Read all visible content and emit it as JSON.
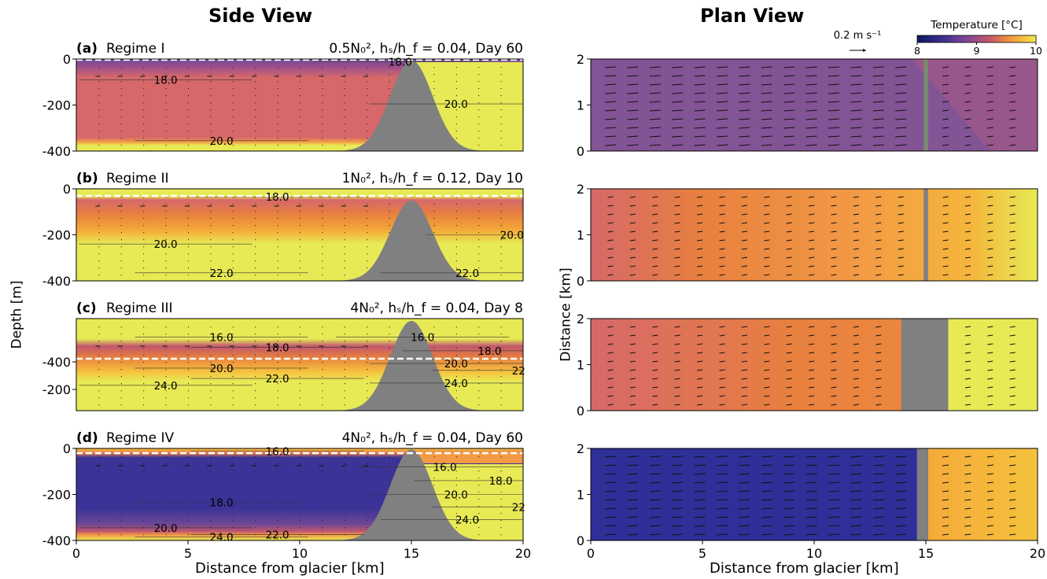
{
  "titles": {
    "side": "Side View",
    "plan": "Plan View",
    "ylabel_side": "Depth [m]",
    "ylabel_plan": "Distance [km]",
    "xlabel_side": "Distance from glacier [km]",
    "xlabel_plan": "Distance from glacier [km]"
  },
  "colorbar": {
    "label": "Temperature [°C]",
    "ticks": [
      "8",
      "9",
      "10"
    ],
    "colors": [
      "#0d1a5e",
      "#3a2c8c",
      "#7a4598",
      "#b85578",
      "#e87b4a",
      "#f7b13c",
      "#f2ea55"
    ]
  },
  "scale_arrow": {
    "label": "0.2 m s⁻¹"
  },
  "colors": {
    "topography": "#808080",
    "yellow": "#e8ea55",
    "regime1_side": "#d6686a",
    "regime1_plan": "#835495",
    "regime2_plan": "#f0913c",
    "regime3_plan": "#e8803f",
    "regime4_side": "#3b3397",
    "regime4_plan": "#2f2f99",
    "regime4_plan_right": "#f5aa38"
  },
  "chart_data": [
    {
      "type": "heatmap",
      "panel": "(a)",
      "view": "side",
      "label": "(a)",
      "regime": "Regime I",
      "params": "0.5N₀², hₛ/h_f = 0.04, Day 60",
      "xlim": [
        0,
        20
      ],
      "ylim": [
        -400,
        0
      ],
      "yticks": [
        "0",
        "-200",
        "-400"
      ],
      "xticks": [],
      "contour_labels": [
        {
          "text": "18.0",
          "x": 14.5,
          "y": -12
        },
        {
          "text": "18.0",
          "x": 4,
          "y": -90
        },
        {
          "text": "20.0",
          "x": 17,
          "y": -195
        },
        {
          "text": "20.0",
          "x": 6.5,
          "y": -355
        }
      ],
      "sill_center_km": 15,
      "sill_top_depth": -5
    },
    {
      "type": "heatmap",
      "panel": "(b)",
      "view": "side",
      "label": "(b)",
      "regime": "Regime II",
      "params": "1N₀², hₛ/h_f = 0.12, Day 10",
      "xlim": [
        0,
        20
      ],
      "ylim": [
        -400,
        0
      ],
      "yticks": [
        "0",
        "-200",
        "-400"
      ],
      "xticks": [],
      "contour_labels": [
        {
          "text": "18.0",
          "x": 9,
          "y": -35
        },
        {
          "text": "20.0",
          "x": 4,
          "y": -240
        },
        {
          "text": "20.0",
          "x": 19.5,
          "y": -200
        },
        {
          "text": "22.0",
          "x": 6.5,
          "y": -365
        },
        {
          "text": "22.0",
          "x": 17.5,
          "y": -365
        }
      ],
      "sill_center_km": 15,
      "sill_top_depth": -50
    },
    {
      "type": "heatmap",
      "panel": "(c)",
      "view": "side",
      "label": "(c)",
      "regime": "Regime III",
      "params": "4N₀², hₛ/h_f = 0.04, Day 8",
      "xlim": [
        0,
        20
      ],
      "ylim": [
        -600,
        -200
      ],
      "yticks": [
        "-400",
        "-200"
      ],
      "xticks": [],
      "contour_labels": [
        {
          "text": "16.0",
          "x": 6.5,
          "y": -280
        },
        {
          "text": "16.0",
          "x": 15.5,
          "y": -280
        },
        {
          "text": "18.0",
          "x": 9,
          "y": -325
        },
        {
          "text": "18.0",
          "x": 18.5,
          "y": -340
        },
        {
          "text": "20.0",
          "x": 6.5,
          "y": -415
        },
        {
          "text": "20.0",
          "x": 17,
          "y": -395
        },
        {
          "text": "22.0",
          "x": 9,
          "y": -460
        },
        {
          "text": "22",
          "x": 19.8,
          "y": -425
        },
        {
          "text": "24.0",
          "x": 4,
          "y": -490
        },
        {
          "text": "24.0",
          "x": 17,
          "y": -480
        }
      ],
      "sill_center_km": 15,
      "sill_top_depth": -210
    },
    {
      "type": "heatmap",
      "panel": "(d)",
      "view": "side",
      "label": "(d)",
      "regime": "Regime IV",
      "params": "4N₀², hₛ/h_f = 0.04, Day 60",
      "xlim": [
        0,
        20
      ],
      "ylim": [
        -400,
        0
      ],
      "yticks": [
        "0",
        "-200",
        "-400"
      ],
      "xticks": [
        "0",
        "5",
        "10",
        "15",
        "20"
      ],
      "contour_labels": [
        {
          "text": "16.0",
          "x": 9,
          "y": -12
        },
        {
          "text": "16.0",
          "x": 16.5,
          "y": -80
        },
        {
          "text": "18.0",
          "x": 6.5,
          "y": -235
        },
        {
          "text": "18.0",
          "x": 19,
          "y": -140
        },
        {
          "text": "20.0",
          "x": 4,
          "y": -345
        },
        {
          "text": "20.0",
          "x": 17,
          "y": -200
        },
        {
          "text": "22",
          "x": 19.8,
          "y": -255
        },
        {
          "text": "22.0",
          "x": 9,
          "y": -375
        },
        {
          "text": "24.0",
          "x": 6.5,
          "y": -385
        },
        {
          "text": "24.0",
          "x": 17.5,
          "y": -310
        }
      ],
      "sill_center_km": 15,
      "sill_top_depth": -5
    },
    {
      "type": "heatmap",
      "panel": "plan-a",
      "view": "plan",
      "xlim": [
        0,
        20
      ],
      "ylim": [
        0,
        2
      ],
      "yticks": [
        "0",
        "1",
        "2"
      ],
      "xticks": [],
      "sill_band_km": [
        14.9,
        15.1
      ]
    },
    {
      "type": "heatmap",
      "panel": "plan-b",
      "view": "plan",
      "xlim": [
        0,
        20
      ],
      "ylim": [
        0,
        2
      ],
      "yticks": [
        "0",
        "1",
        "2"
      ],
      "xticks": [],
      "sill_band_km": [
        14.9,
        15.1
      ]
    },
    {
      "type": "heatmap",
      "panel": "plan-c",
      "view": "plan",
      "xlim": [
        0,
        20
      ],
      "ylim": [
        0,
        2
      ],
      "yticks": [
        "0",
        "1",
        "2"
      ],
      "xticks": [],
      "sill_band_km": [
        13.9,
        16.0
      ]
    },
    {
      "type": "heatmap",
      "panel": "plan-d",
      "view": "plan",
      "xlim": [
        0,
        20
      ],
      "ylim": [
        0,
        2
      ],
      "yticks": [
        "0",
        "1",
        "2"
      ],
      "xticks": [
        "0",
        "5",
        "10",
        "15",
        "20"
      ],
      "sill_band_km": [
        14.6,
        15.1
      ]
    }
  ]
}
